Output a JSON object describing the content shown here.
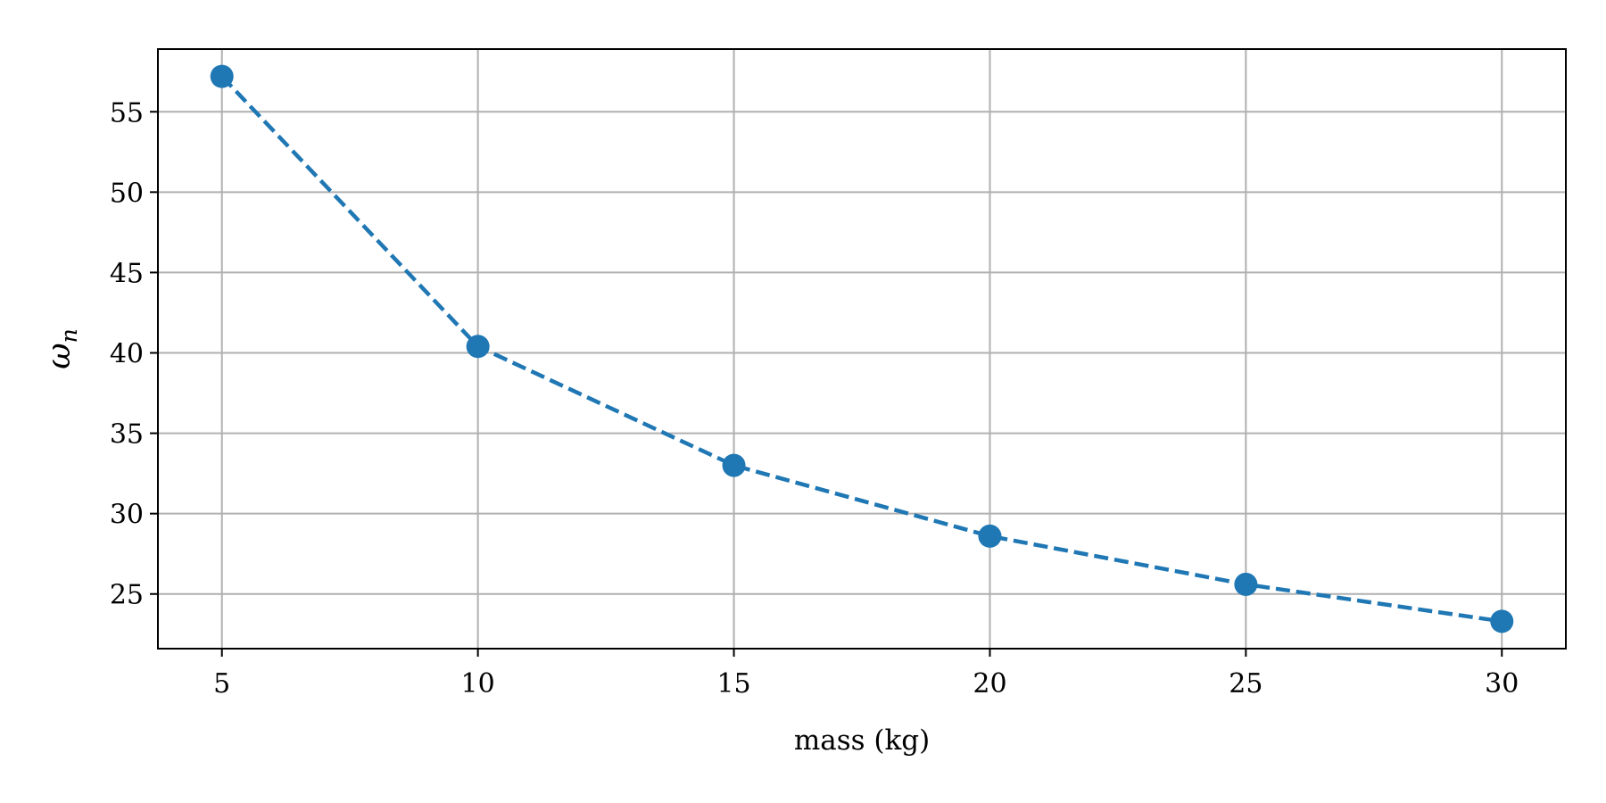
{
  "chart_data": {
    "type": "line",
    "title": "",
    "xlabel": "mass (kg)",
    "ylabel": "ω_n",
    "ylabel_base": "ω",
    "ylabel_subscript": "n",
    "x": [
      5,
      10,
      15,
      20,
      25,
      30
    ],
    "series": [
      {
        "values": [
          57.2,
          40.4,
          33.0,
          28.6,
          25.6,
          23.3
        ]
      }
    ],
    "xlim": [
      3.75,
      31.25
    ],
    "ylim": [
      21.6,
      58.9
    ],
    "xticks": [
      5,
      10,
      15,
      20,
      25,
      30
    ],
    "yticks": [
      25,
      30,
      35,
      40,
      45,
      50,
      55
    ],
    "xtick_labels": [
      "5",
      "10",
      "15",
      "20",
      "25",
      "30"
    ],
    "ytick_labels": [
      "25",
      "30",
      "35",
      "40",
      "45",
      "50",
      "55"
    ],
    "grid": true,
    "line_style": "dashed",
    "marker": "circle",
    "colors": {
      "series": "#1f77b4",
      "grid": "#b0b0b0",
      "axis": "#000000"
    }
  }
}
